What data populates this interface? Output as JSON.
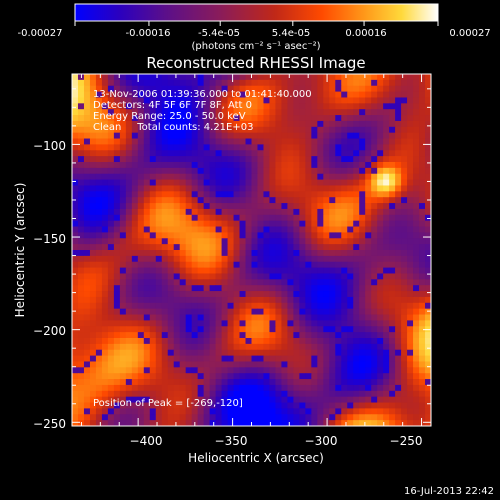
{
  "colorbar": {
    "ticks": [
      "-0.00027",
      "-0.00016",
      "-5.4e-05",
      "5.4e-05",
      "0.00016",
      "0.00027"
    ],
    "tick_values": [
      -0.00027,
      -0.00016,
      -5.4e-05,
      5.4e-05,
      0.00016,
      0.00027
    ],
    "range": [
      -0.00027,
      0.00027
    ],
    "unit_label": "(photons cm⁻² s⁻¹ asec⁻²)",
    "colors": [
      "#0000ff",
      "#2a00c0",
      "#5b0f8a",
      "#8a1c5a",
      "#c02818",
      "#ff4a00",
      "#ff9a1a",
      "#ffd93b",
      "#ffffff"
    ]
  },
  "chart_data": {
    "type": "heatmap",
    "title": "Reconstructed RHESSI Image",
    "xlabel": "Heliocentric X (arcsec)",
    "ylabel": "Heliocentric Y (arcsec)",
    "xlim": [
      -435,
      -245
    ],
    "ylim": [
      -252,
      -62
    ],
    "xticks": [
      -400,
      -350,
      -300,
      -250
    ],
    "xtick_labels": [
      "−400",
      "−350",
      "−300",
      "−250"
    ],
    "yticks": [
      -100,
      -150,
      -200,
      -250
    ],
    "ytick_labels": [
      "−100",
      "−150",
      "−200",
      "−250"
    ],
    "colorscale": [
      "#0000ff",
      "#2a00c0",
      "#5b0f8a",
      "#8a1c5a",
      "#c02818",
      "#ff4a00",
      "#ff9a1a",
      "#ffd93b",
      "#ffffff"
    ],
    "zrange": [
      -0.00027,
      0.00027
    ],
    "peak": [
      -269,
      -120
    ],
    "annotations": {
      "line1": "13-Nov-2006 01:39:36.000 to 01:41:40.000",
      "line2": "Detectors: 4F 5F 6F 7F 8F, Att 0",
      "line3": "Energy Range: 25.0 - 50.0 keV",
      "line4": "Clean     Total counts: 4.21E+03",
      "peak_label": "Position of Peak = [-269,-120]"
    }
  },
  "timestamp": "16-Jul-2013 22:42"
}
